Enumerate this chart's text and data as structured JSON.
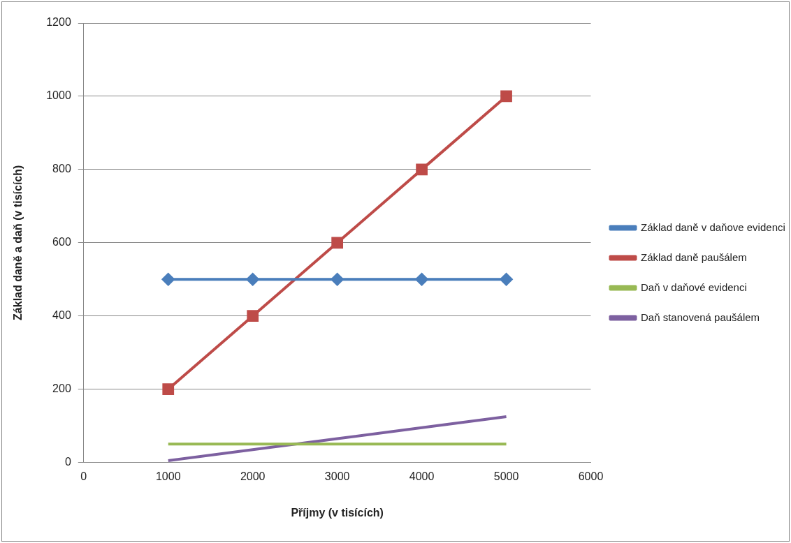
{
  "chart_data": {
    "type": "line",
    "xlabel": "Příjmy (v tisících)",
    "ylabel": "Základ daně a daň (v tisících)",
    "xlim": [
      0,
      6000
    ],
    "xticks": [
      0,
      1000,
      2000,
      3000,
      4000,
      5000,
      6000
    ],
    "ylim": [
      0,
      1200
    ],
    "yticks": [
      0,
      200,
      400,
      600,
      800,
      1000,
      1200
    ],
    "grid": "y",
    "legend": "right",
    "series": [
      {
        "name": "Základ daně v daňove evidenci",
        "color": "#4a7ebb",
        "marker": "diamond",
        "x": [
          1000,
          2000,
          3000,
          4000,
          5000
        ],
        "values": [
          500,
          500,
          500,
          500,
          500
        ]
      },
      {
        "name": "Základ daně paušálem",
        "color": "#be4b48",
        "marker": "square",
        "x": [
          1000,
          2000,
          3000,
          4000,
          5000
        ],
        "values": [
          200,
          400,
          600,
          800,
          1000
        ]
      },
      {
        "name": "Daň v daňové evidenci",
        "color": "#98b954",
        "marker": "none",
        "x": [
          1000,
          2000,
          3000,
          4000,
          5000
        ],
        "values": [
          50,
          50,
          50,
          50,
          50
        ]
      },
      {
        "name": "Daň stanovená paušálem",
        "color": "#7d60a0",
        "marker": "none",
        "x": [
          1000,
          2000,
          3000,
          4000,
          5000
        ],
        "values": [
          5,
          35,
          65,
          95,
          125
        ]
      }
    ]
  }
}
